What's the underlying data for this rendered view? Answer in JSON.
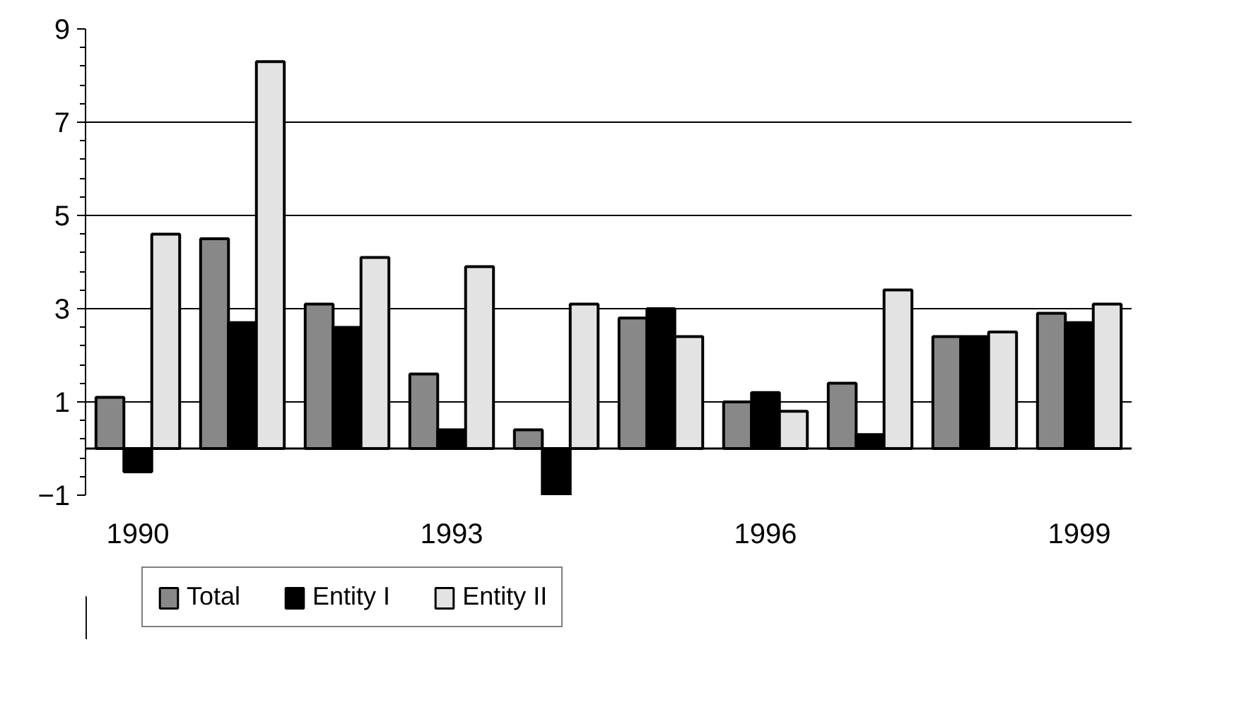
{
  "chart_data": {
    "type": "bar",
    "categories": [
      "1990",
      null,
      null,
      "1993",
      null,
      null,
      "1996",
      null,
      null,
      "1999"
    ],
    "series": [
      {
        "name": "Total",
        "color": "#888888",
        "values": [
          1.1,
          4.5,
          3.1,
          1.6,
          0.4,
          2.8,
          1.0,
          1.4,
          2.4,
          2.9
        ]
      },
      {
        "name": "Entity I",
        "color": "#000000",
        "values": [
          -0.5,
          2.7,
          2.6,
          0.4,
          -1.0,
          3.0,
          1.2,
          0.3,
          2.4,
          2.7
        ]
      },
      {
        "name": "Entity II",
        "color": "#e3e3e3",
        "values": [
          4.6,
          8.3,
          4.1,
          3.9,
          3.1,
          2.4,
          0.8,
          3.4,
          2.5,
          3.1
        ]
      }
    ],
    "ylim": [
      -1,
      9
    ],
    "yticks": [
      -1,
      1,
      3,
      5,
      7,
      9
    ],
    "grid": "y",
    "legend": "bottom"
  }
}
